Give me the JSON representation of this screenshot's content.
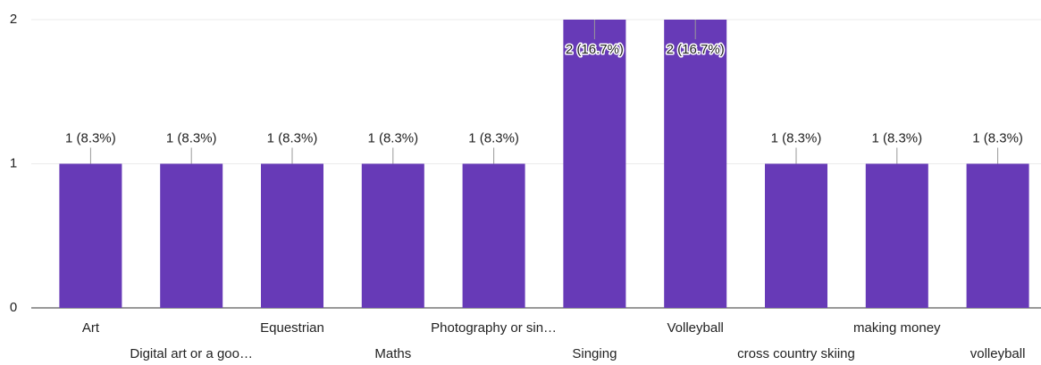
{
  "chart_data": {
    "type": "bar",
    "categories": [
      "Art",
      "Digital art or a goo…",
      "Equestrian",
      "Maths",
      "Photography or sin…",
      "Singing",
      "Volleyball",
      "cross country skiing",
      "making money",
      "volleyball"
    ],
    "values": [
      1,
      1,
      1,
      1,
      1,
      2,
      2,
      1,
      1,
      1
    ],
    "value_labels": [
      "1 (8.3%)",
      "1 (8.3%)",
      "1 (8.3%)",
      "1 (8.3%)",
      "1 (8.3%)",
      "2 (16.7%)",
      "2 (16.7%)",
      "1 (8.3%)",
      "1 (8.3%)",
      "1 (8.3%)"
    ],
    "color": "#673ab7",
    "ylim": [
      0,
      2
    ],
    "yticks": [
      0,
      1,
      2
    ],
    "grid": true
  }
}
